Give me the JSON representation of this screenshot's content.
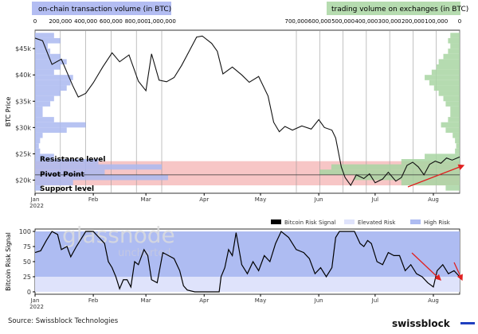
{
  "chart_data": [
    {
      "type": "line",
      "title": "",
      "ylabel": "BTC Price",
      "ylim": [
        17500,
        48500
      ],
      "yticks": [
        "$20k",
        "$25k",
        "$30k",
        "$35k",
        "$40k",
        "$45k"
      ],
      "ytick_values": [
        20000,
        25000,
        30000,
        35000,
        40000,
        45000
      ],
      "xticks": [
        "Jan\n2022",
        "Feb",
        "Mar",
        "Apr",
        "May",
        "Jun",
        "Jul",
        "Aug"
      ],
      "xtick_days": [
        0,
        31,
        59,
        90,
        120,
        151,
        181,
        212
      ],
      "xlim_days": [
        0,
        226
      ],
      "series": [
        {
          "name": "BTC Price",
          "x": [
            0,
            4,
            9,
            14,
            20,
            23,
            27,
            31,
            36,
            41,
            45,
            50,
            55,
            59,
            62,
            66,
            70,
            74,
            78,
            82,
            86,
            89,
            94,
            97,
            100,
            105,
            110,
            114,
            119,
            124,
            127,
            130,
            133,
            137,
            142,
            147,
            151,
            154,
            158,
            160,
            163,
            165,
            168,
            171,
            175,
            178,
            181,
            185,
            188,
            192,
            195,
            198,
            201,
            204,
            207,
            210,
            213,
            216,
            219,
            222,
            226
          ],
          "y": [
            47000,
            46500,
            42000,
            43000,
            38000,
            35800,
            36500,
            38500,
            41500,
            44200,
            42500,
            43800,
            38800,
            37000,
            44000,
            39000,
            38700,
            39500,
            41800,
            44500,
            47200,
            47400,
            46000,
            44500,
            40200,
            41500,
            40000,
            38600,
            39700,
            36000,
            31000,
            29200,
            30200,
            29500,
            30300,
            29700,
            31500,
            30000,
            29500,
            28000,
            22500,
            20500,
            19000,
            21000,
            20300,
            21200,
            19500,
            20200,
            21500,
            19800,
            20500,
            22800,
            23400,
            22500,
            21000,
            23000,
            23600,
            23200,
            24200,
            23800,
            24400
          ]
        }
      ],
      "volume_profiles": {
        "price_bins": [
          18000,
          19000,
          20000,
          21000,
          22000,
          23000,
          24000,
          25000,
          26000,
          27000,
          28000,
          29000,
          30000,
          31000,
          32000,
          33000,
          34000,
          35000,
          36000,
          37000,
          38000,
          39000,
          40000,
          41000,
          42000,
          43000,
          44000,
          45000,
          46000,
          47000
        ],
        "on_chain": {
          "label": "on-chain transaction volume (in BTC)",
          "ticks": [
            "0",
            "200,000",
            "400,000",
            "600,000",
            "800,000",
            "1,000,000"
          ],
          "tick_values": [
            0,
            200000,
            400000,
            600000,
            800000,
            1000000
          ],
          "values": [
            50000,
            300000,
            1050000,
            550000,
            1000000,
            500000,
            150000,
            40000,
            30000,
            40000,
            60000,
            250000,
            400000,
            150000,
            60000,
            60000,
            120000,
            150000,
            200000,
            250000,
            280000,
            300000,
            150000,
            200000,
            250000,
            200000,
            120000,
            100000,
            200000,
            150000
          ]
        },
        "exchanges": {
          "label": "trading volume on exchanges (in BTC)",
          "ticks": [
            "700,000",
            "600,000",
            "500,000",
            "400,000",
            "300,000",
            "200,000",
            "100,000",
            "0"
          ],
          "tick_values": [
            700000,
            600000,
            500000,
            400000,
            300000,
            200000,
            100000,
            0
          ],
          "values": [
            60000,
            250000,
            450000,
            600000,
            550000,
            250000,
            150000,
            20000,
            15000,
            20000,
            30000,
            60000,
            80000,
            50000,
            40000,
            40000,
            60000,
            70000,
            90000,
            110000,
            130000,
            150000,
            120000,
            100000,
            90000,
            70000,
            50000,
            40000,
            50000,
            40000
          ]
        }
      },
      "levels": {
        "resistance": {
          "label": "Resistance level",
          "value": 23600
        },
        "pivot": {
          "label": "Pivot Point",
          "value": 21000
        },
        "support": {
          "label": "Support level",
          "value": 19000
        }
      },
      "colors": {
        "onchain": "#aab8f0",
        "exchanges": "#a8d5a2",
        "band": "#f7c6c6",
        "arrow": "#e02020"
      }
    },
    {
      "type": "line",
      "ylabel": "Bitcoin Risk Signal",
      "ylim": [
        -4,
        104
      ],
      "yticks": [
        "0",
        "25",
        "50",
        "75",
        "100"
      ],
      "ytick_values": [
        0,
        25,
        50,
        75,
        100
      ],
      "xticks": [
        "Jan\n2022",
        "Feb",
        "Mar",
        "Apr",
        "May",
        "Jun",
        "Jul",
        "Aug"
      ],
      "xtick_days": [
        0,
        31,
        59,
        90,
        120,
        151,
        181,
        212
      ],
      "xlim_days": [
        0,
        226
      ],
      "legend": [
        "Bitcoin Risk Signal",
        "Elevated Risk",
        "High Risk"
      ],
      "legend_placement": "top-right",
      "bands": {
        "elevated": [
          0,
          25
        ],
        "high": [
          25,
          100
        ]
      },
      "series": [
        {
          "name": "Bitcoin Risk Signal",
          "x": [
            0,
            3,
            6,
            9,
            12,
            14,
            17,
            19,
            22,
            24,
            27,
            31,
            34,
            37,
            39,
            41,
            43,
            45,
            47,
            49,
            51,
            53,
            55,
            58,
            60,
            62,
            65,
            68,
            71,
            74,
            77,
            79,
            81,
            85,
            88,
            90,
            92,
            94,
            96,
            98,
            99,
            101,
            103,
            105,
            107,
            110,
            113,
            116,
            119,
            122,
            125,
            128,
            131,
            135,
            139,
            143,
            146,
            149,
            152,
            155,
            158,
            160,
            162,
            164,
            166,
            167,
            170,
            173,
            175,
            177,
            179,
            182,
            185,
            188,
            191,
            194,
            197,
            200,
            203,
            206,
            209,
            212,
            214,
            217,
            220,
            223,
            226
          ],
          "y": [
            65,
            68,
            85,
            100,
            95,
            70,
            75,
            58,
            75,
            85,
            100,
            100,
            90,
            80,
            50,
            40,
            25,
            5,
            20,
            20,
            8,
            50,
            45,
            70,
            60,
            20,
            15,
            65,
            60,
            55,
            35,
            10,
            3,
            0,
            0,
            0,
            0,
            0,
            0,
            0,
            25,
            40,
            70,
            60,
            98,
            45,
            30,
            50,
            35,
            60,
            50,
            80,
            100,
            90,
            70,
            65,
            55,
            30,
            40,
            25,
            40,
            90,
            100,
            100,
            100,
            100,
            100,
            80,
            75,
            85,
            80,
            50,
            45,
            65,
            60,
            60,
            35,
            45,
            30,
            25,
            15,
            8,
            35,
            45,
            30,
            35,
            25
          ]
        }
      ],
      "watermark": [
        "glassnode",
        "uncharted"
      ]
    }
  ],
  "footer": {
    "source": "Source: Swissblock Technologies",
    "brand": "swissblock"
  }
}
